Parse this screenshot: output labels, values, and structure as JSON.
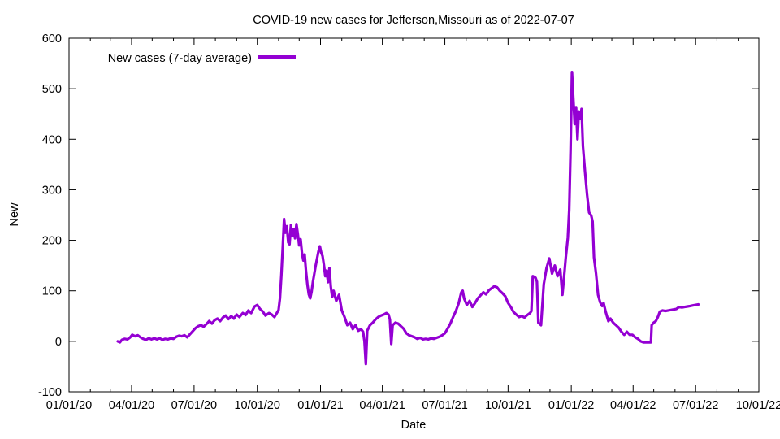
{
  "title": "COVID-19 new cases for Jefferson,Missouri as of 2022-07-07",
  "colors": {
    "line": "#9400d3",
    "text": "#000000",
    "background": "#ffffff",
    "frame": "#000000"
  },
  "chart_data": {
    "type": "line",
    "title": "COVID-19 new cases for Jefferson,Missouri as of 2022-07-07",
    "xlabel": "Date",
    "ylabel": "New",
    "xlim": [
      "2020-01-01",
      "2022-10-01"
    ],
    "ylim": [
      -100,
      600
    ],
    "grid": false,
    "legend_position": "top-left-inside",
    "yticks": [
      -100,
      0,
      100,
      200,
      300,
      400,
      500,
      600
    ],
    "xticks": [
      {
        "date": "2020-01-01",
        "label": "01/01/20"
      },
      {
        "date": "2020-04-01",
        "label": "04/01/20"
      },
      {
        "date": "2020-07-01",
        "label": "07/01/20"
      },
      {
        "date": "2020-10-01",
        "label": "10/01/20"
      },
      {
        "date": "2021-01-01",
        "label": "01/01/21"
      },
      {
        "date": "2021-04-01",
        "label": "04/01/21"
      },
      {
        "date": "2021-07-01",
        "label": "07/01/21"
      },
      {
        "date": "2021-10-01",
        "label": "10/01/21"
      },
      {
        "date": "2022-01-01",
        "label": "01/01/22"
      },
      {
        "date": "2022-04-01",
        "label": "04/01/22"
      },
      {
        "date": "2022-07-01",
        "label": "07/01/22"
      },
      {
        "date": "2022-10-01",
        "label": "10/01/22"
      }
    ],
    "minor_xticks": "monthly",
    "series": [
      {
        "name": "New cases (7-day average)",
        "color": "#9400d3",
        "points": [
          [
            "2020-03-12",
            0
          ],
          [
            "2020-03-15",
            -2
          ],
          [
            "2020-03-18",
            3
          ],
          [
            "2020-03-22",
            5
          ],
          [
            "2020-03-26",
            4
          ],
          [
            "2020-03-30",
            8
          ],
          [
            "2020-04-02",
            13
          ],
          [
            "2020-04-06",
            10
          ],
          [
            "2020-04-10",
            12
          ],
          [
            "2020-04-14",
            8
          ],
          [
            "2020-04-18",
            5
          ],
          [
            "2020-04-22",
            3
          ],
          [
            "2020-04-26",
            6
          ],
          [
            "2020-04-30",
            4
          ],
          [
            "2020-05-04",
            6
          ],
          [
            "2020-05-08",
            4
          ],
          [
            "2020-05-12",
            6
          ],
          [
            "2020-05-16",
            3
          ],
          [
            "2020-05-20",
            5
          ],
          [
            "2020-05-24",
            4
          ],
          [
            "2020-05-28",
            6
          ],
          [
            "2020-06-01",
            5
          ],
          [
            "2020-06-05",
            9
          ],
          [
            "2020-06-09",
            11
          ],
          [
            "2020-06-13",
            10
          ],
          [
            "2020-06-17",
            12
          ],
          [
            "2020-06-21",
            8
          ],
          [
            "2020-06-25",
            14
          ],
          [
            "2020-06-29",
            20
          ],
          [
            "2020-07-03",
            26
          ],
          [
            "2020-07-07",
            30
          ],
          [
            "2020-07-11",
            32
          ],
          [
            "2020-07-15",
            29
          ],
          [
            "2020-07-19",
            34
          ],
          [
            "2020-07-23",
            40
          ],
          [
            "2020-07-27",
            35
          ],
          [
            "2020-07-31",
            42
          ],
          [
            "2020-08-04",
            45
          ],
          [
            "2020-08-08",
            40
          ],
          [
            "2020-08-12",
            47
          ],
          [
            "2020-08-16",
            51
          ],
          [
            "2020-08-20",
            44
          ],
          [
            "2020-08-24",
            50
          ],
          [
            "2020-08-28",
            45
          ],
          [
            "2020-09-01",
            53
          ],
          [
            "2020-09-05",
            48
          ],
          [
            "2020-09-10",
            56
          ],
          [
            "2020-09-14",
            52
          ],
          [
            "2020-09-18",
            61
          ],
          [
            "2020-09-22",
            56
          ],
          [
            "2020-09-27",
            69
          ],
          [
            "2020-10-01",
            72
          ],
          [
            "2020-10-05",
            64
          ],
          [
            "2020-10-09",
            59
          ],
          [
            "2020-10-13",
            51
          ],
          [
            "2020-10-18",
            56
          ],
          [
            "2020-10-22",
            53
          ],
          [
            "2020-10-26",
            48
          ],
          [
            "2020-10-29",
            55
          ],
          [
            "2020-11-01",
            62
          ],
          [
            "2020-11-03",
            85
          ],
          [
            "2020-11-05",
            130
          ],
          [
            "2020-11-07",
            185
          ],
          [
            "2020-11-09",
            242
          ],
          [
            "2020-11-11",
            215
          ],
          [
            "2020-11-13",
            228
          ],
          [
            "2020-11-15",
            196
          ],
          [
            "2020-11-17",
            192
          ],
          [
            "2020-11-19",
            230
          ],
          [
            "2020-11-21",
            208
          ],
          [
            "2020-11-23",
            222
          ],
          [
            "2020-11-25",
            204
          ],
          [
            "2020-11-27",
            232
          ],
          [
            "2020-11-29",
            212
          ],
          [
            "2020-12-01",
            190
          ],
          [
            "2020-12-03",
            202
          ],
          [
            "2020-12-05",
            175
          ],
          [
            "2020-12-07",
            160
          ],
          [
            "2020-12-09",
            172
          ],
          [
            "2020-12-11",
            138
          ],
          [
            "2020-12-13",
            112
          ],
          [
            "2020-12-15",
            93
          ],
          [
            "2020-12-17",
            85
          ],
          [
            "2020-12-19",
            98
          ],
          [
            "2020-12-21",
            118
          ],
          [
            "2020-12-23",
            134
          ],
          [
            "2020-12-25",
            150
          ],
          [
            "2020-12-27",
            164
          ],
          [
            "2020-12-29",
            178
          ],
          [
            "2020-12-31",
            188
          ],
          [
            "2021-01-02",
            176
          ],
          [
            "2021-01-04",
            169
          ],
          [
            "2021-01-06",
            151
          ],
          [
            "2021-01-08",
            129
          ],
          [
            "2021-01-10",
            140
          ],
          [
            "2021-01-12",
            117
          ],
          [
            "2021-01-14",
            145
          ],
          [
            "2021-01-16",
            108
          ],
          [
            "2021-01-18",
            88
          ],
          [
            "2021-01-20",
            100
          ],
          [
            "2021-01-24",
            80
          ],
          [
            "2021-01-28",
            92
          ],
          [
            "2021-02-01",
            61
          ],
          [
            "2021-02-05",
            48
          ],
          [
            "2021-02-09",
            32
          ],
          [
            "2021-02-13",
            37
          ],
          [
            "2021-02-17",
            24
          ],
          [
            "2021-02-21",
            32
          ],
          [
            "2021-02-25",
            21
          ],
          [
            "2021-03-01",
            24
          ],
          [
            "2021-03-04",
            19
          ],
          [
            "2021-03-06",
            0
          ],
          [
            "2021-03-08",
            -45
          ],
          [
            "2021-03-10",
            21
          ],
          [
            "2021-03-14",
            32
          ],
          [
            "2021-03-18",
            37
          ],
          [
            "2021-03-22",
            43
          ],
          [
            "2021-03-26",
            48
          ],
          [
            "2021-03-30",
            51
          ],
          [
            "2021-04-03",
            53
          ],
          [
            "2021-04-07",
            56
          ],
          [
            "2021-04-10",
            53
          ],
          [
            "2021-04-12",
            43
          ],
          [
            "2021-04-14",
            -5
          ],
          [
            "2021-04-16",
            32
          ],
          [
            "2021-04-20",
            37
          ],
          [
            "2021-04-24",
            35
          ],
          [
            "2021-04-28",
            30
          ],
          [
            "2021-05-02",
            25
          ],
          [
            "2021-05-06",
            16
          ],
          [
            "2021-05-10",
            12
          ],
          [
            "2021-05-14",
            10
          ],
          [
            "2021-05-18",
            8
          ],
          [
            "2021-05-22",
            5
          ],
          [
            "2021-05-26",
            7
          ],
          [
            "2021-05-30",
            4
          ],
          [
            "2021-06-03",
            5
          ],
          [
            "2021-06-07",
            4
          ],
          [
            "2021-06-11",
            6
          ],
          [
            "2021-06-15",
            5
          ],
          [
            "2021-06-19",
            7
          ],
          [
            "2021-06-23",
            9
          ],
          [
            "2021-06-27",
            12
          ],
          [
            "2021-07-01",
            16
          ],
          [
            "2021-07-05",
            25
          ],
          [
            "2021-07-09",
            35
          ],
          [
            "2021-07-13",
            48
          ],
          [
            "2021-07-17",
            60
          ],
          [
            "2021-07-21",
            75
          ],
          [
            "2021-07-25",
            97
          ],
          [
            "2021-07-27",
            100
          ],
          [
            "2021-07-29",
            85
          ],
          [
            "2021-08-02",
            72
          ],
          [
            "2021-08-06",
            80
          ],
          [
            "2021-08-10",
            68
          ],
          [
            "2021-08-14",
            76
          ],
          [
            "2021-08-18",
            85
          ],
          [
            "2021-08-22",
            91
          ],
          [
            "2021-08-26",
            97
          ],
          [
            "2021-08-30",
            93
          ],
          [
            "2021-09-03",
            101
          ],
          [
            "2021-09-07",
            105
          ],
          [
            "2021-09-11",
            109
          ],
          [
            "2021-09-15",
            107
          ],
          [
            "2021-09-19",
            100
          ],
          [
            "2021-09-23",
            95
          ],
          [
            "2021-09-27",
            89
          ],
          [
            "2021-10-01",
            76
          ],
          [
            "2021-10-05",
            68
          ],
          [
            "2021-10-09",
            58
          ],
          [
            "2021-10-13",
            53
          ],
          [
            "2021-10-17",
            48
          ],
          [
            "2021-10-21",
            50
          ],
          [
            "2021-10-25",
            47
          ],
          [
            "2021-10-29",
            52
          ],
          [
            "2021-11-02",
            56
          ],
          [
            "2021-11-04",
            60
          ],
          [
            "2021-11-06",
            129
          ],
          [
            "2021-11-10",
            126
          ],
          [
            "2021-11-12",
            118
          ],
          [
            "2021-11-14",
            37
          ],
          [
            "2021-11-18",
            32
          ],
          [
            "2021-11-22",
            113
          ],
          [
            "2021-11-26",
            145
          ],
          [
            "2021-11-30",
            164
          ],
          [
            "2021-12-04",
            134
          ],
          [
            "2021-12-08",
            150
          ],
          [
            "2021-12-12",
            129
          ],
          [
            "2021-12-16",
            142
          ],
          [
            "2021-12-19",
            92
          ],
          [
            "2021-12-22",
            135
          ],
          [
            "2021-12-24",
            166
          ],
          [
            "2021-12-27",
            205
          ],
          [
            "2021-12-29",
            260
          ],
          [
            "2021-12-31",
            380
          ],
          [
            "2022-01-02",
            533
          ],
          [
            "2022-01-04",
            480
          ],
          [
            "2022-01-06",
            430
          ],
          [
            "2022-01-08",
            462
          ],
          [
            "2022-01-10",
            400
          ],
          [
            "2022-01-12",
            455
          ],
          [
            "2022-01-14",
            440
          ],
          [
            "2022-01-16",
            460
          ],
          [
            "2022-01-18",
            386
          ],
          [
            "2022-01-21",
            335
          ],
          [
            "2022-01-24",
            290
          ],
          [
            "2022-01-27",
            255
          ],
          [
            "2022-01-30",
            249
          ],
          [
            "2022-02-01",
            237
          ],
          [
            "2022-02-03",
            166
          ],
          [
            "2022-02-06",
            134
          ],
          [
            "2022-02-09",
            92
          ],
          [
            "2022-02-12",
            77
          ],
          [
            "2022-02-15",
            70
          ],
          [
            "2022-02-17",
            76
          ],
          [
            "2022-02-20",
            59
          ],
          [
            "2022-02-24",
            40
          ],
          [
            "2022-02-27",
            45
          ],
          [
            "2022-03-03",
            37
          ],
          [
            "2022-03-07",
            32
          ],
          [
            "2022-03-11",
            27
          ],
          [
            "2022-03-15",
            19
          ],
          [
            "2022-03-19",
            13
          ],
          [
            "2022-03-23",
            19
          ],
          [
            "2022-03-27",
            13
          ],
          [
            "2022-03-31",
            13
          ],
          [
            "2022-04-04",
            8
          ],
          [
            "2022-04-08",
            5
          ],
          [
            "2022-04-12",
            0
          ],
          [
            "2022-04-16",
            -2
          ],
          [
            "2022-04-20",
            -2
          ],
          [
            "2022-04-24",
            -2
          ],
          [
            "2022-04-27",
            -2
          ],
          [
            "2022-04-28",
            32
          ],
          [
            "2022-05-01",
            37
          ],
          [
            "2022-05-04",
            40
          ],
          [
            "2022-05-07",
            48
          ],
          [
            "2022-05-10",
            59
          ],
          [
            "2022-05-14",
            61
          ],
          [
            "2022-05-18",
            60
          ],
          [
            "2022-05-22",
            61
          ],
          [
            "2022-05-26",
            62
          ],
          [
            "2022-05-30",
            63
          ],
          [
            "2022-06-03",
            64
          ],
          [
            "2022-06-07",
            68
          ],
          [
            "2022-06-11",
            67
          ],
          [
            "2022-06-15",
            68
          ],
          [
            "2022-06-19",
            69
          ],
          [
            "2022-06-23",
            70
          ],
          [
            "2022-06-27",
            71
          ],
          [
            "2022-07-01",
            72
          ],
          [
            "2022-07-05",
            73
          ]
        ]
      }
    ]
  }
}
